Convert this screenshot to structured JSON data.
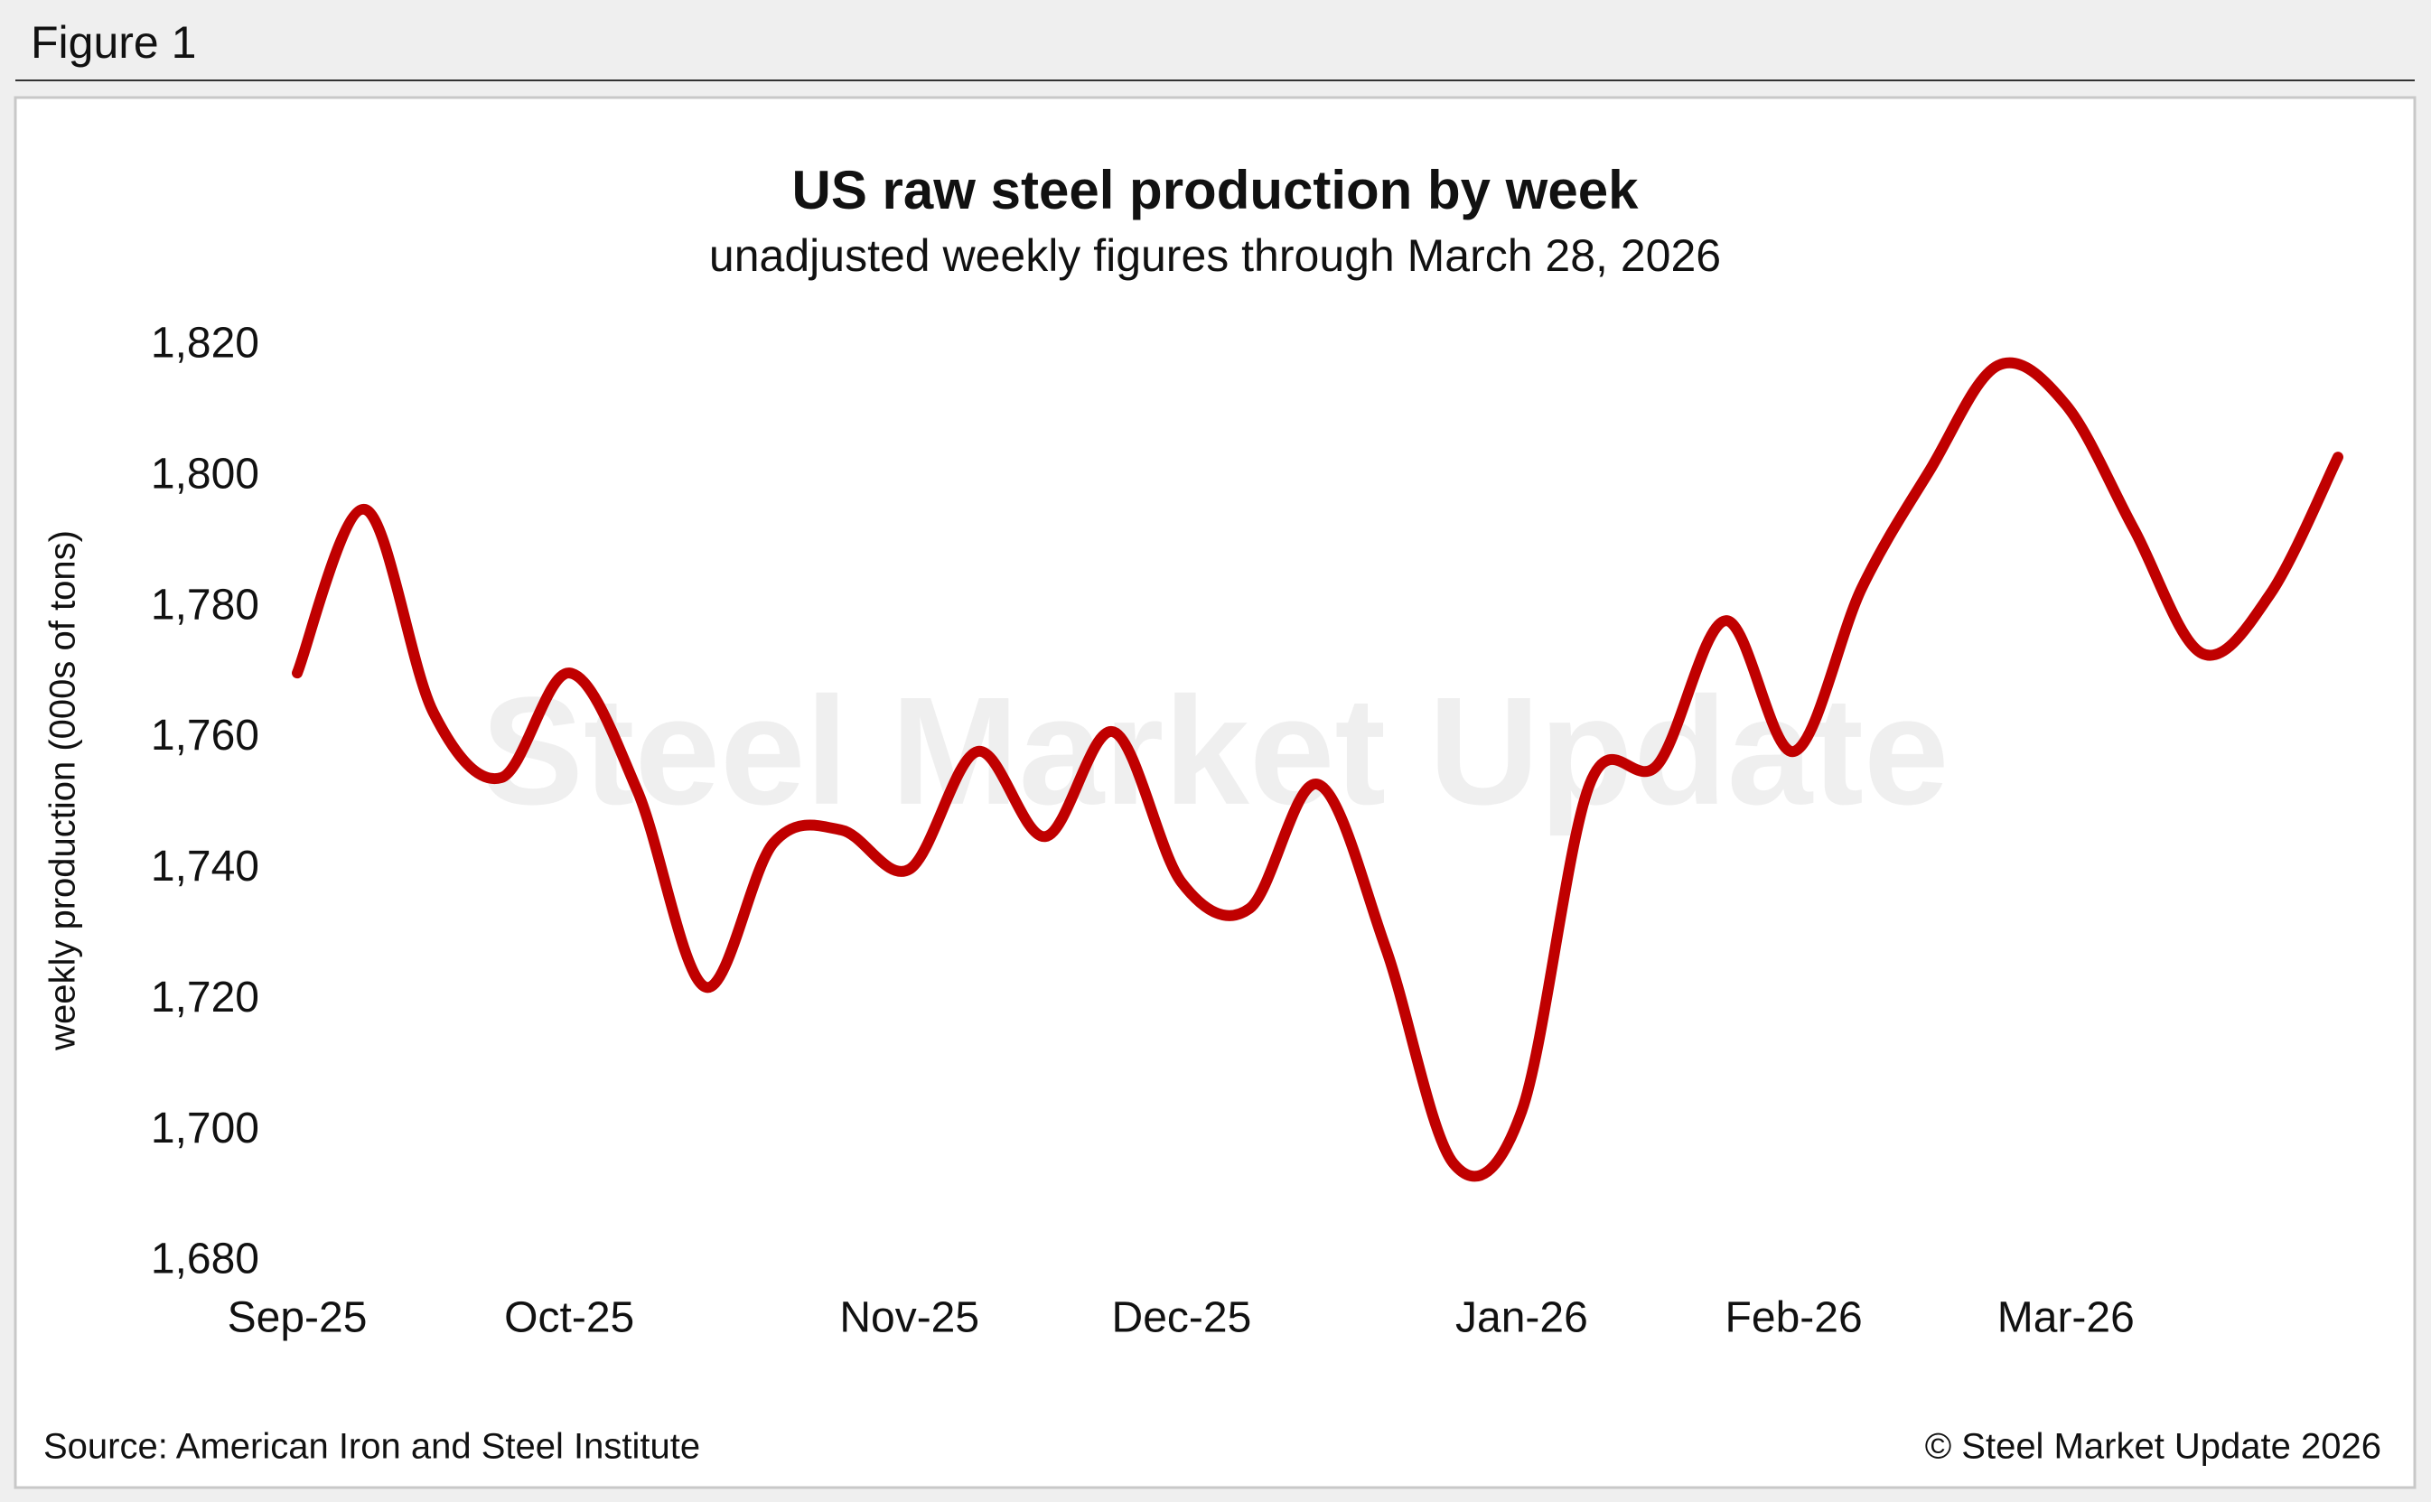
{
  "figure_label": "Figure 1",
  "chart_data": {
    "type": "line",
    "title": "US raw steel production by week",
    "subtitle": "unadjusted weekly figures through March 28, 2026",
    "y_label": "weekly production (000s of tons)",
    "watermark": "Steel Market Update",
    "source": "Source: American Iron and Steel Institute",
    "credit": "© Steel Market Update 2026",
    "categories": [
      "Sep-25",
      null,
      null,
      null,
      "Oct-25",
      null,
      null,
      null,
      null,
      "Nov-25",
      null,
      null,
      null,
      "Dec-25",
      null,
      null,
      null,
      null,
      "Jan-26",
      null,
      null,
      null,
      "Feb-26",
      null,
      null,
      null,
      "Mar-26",
      null,
      null,
      null,
      null
    ],
    "series": [
      {
        "name": "US raw steel production",
        "color": "#c00000",
        "values": [
          1770,
          1795,
          1764,
          1754,
          1770,
          1752,
          1722,
          1744,
          1746,
          1740,
          1758,
          1745,
          1761,
          1738,
          1734,
          1753,
          1728,
          1695,
          1703,
          1753,
          1756,
          1778,
          1758,
          1783,
          1801,
          1817,
          1811,
          1792,
          1773,
          1782,
          1803
        ]
      }
    ],
    "ylim": [
      1680,
      1820
    ],
    "yticks": [
      {
        "value": 1680,
        "label": "1,680"
      },
      {
        "value": 1700,
        "label": "1,700"
      },
      {
        "value": 1720,
        "label": "1,720"
      },
      {
        "value": 1740,
        "label": "1,740"
      },
      {
        "value": 1760,
        "label": "1,760"
      },
      {
        "value": 1780,
        "label": "1,780"
      },
      {
        "value": 1800,
        "label": "1,800"
      },
      {
        "value": 1820,
        "label": "1,820"
      }
    ],
    "grid": false
  }
}
